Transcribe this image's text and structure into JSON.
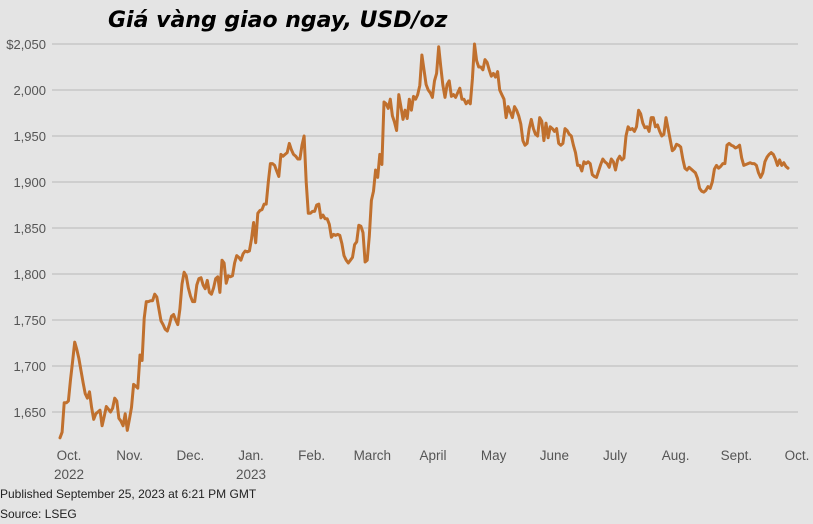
{
  "chart_data": {
    "type": "line",
    "title": "Giá vàng giao ngay, USD/oz",
    "xlabel": "",
    "ylabel": "",
    "ylim": [
      1620,
      2060
    ],
    "y_ticks": [
      "$2,050",
      "2,000",
      "1,950",
      "1,900",
      "1,850",
      "1,800",
      "1,750",
      "1,700",
      "1,650"
    ],
    "y_tick_values": [
      2050,
      2000,
      1950,
      1900,
      1850,
      1800,
      1750,
      1700,
      1650
    ],
    "x_ticks": [
      {
        "label": "Oct.",
        "sub": "2022"
      },
      {
        "label": "Nov.",
        "sub": ""
      },
      {
        "label": "Dec.",
        "sub": ""
      },
      {
        "label": "Jan.",
        "sub": "2023"
      },
      {
        "label": "Feb.",
        "sub": ""
      },
      {
        "label": "March",
        "sub": ""
      },
      {
        "label": "April",
        "sub": ""
      },
      {
        "label": "May",
        "sub": ""
      },
      {
        "label": "June",
        "sub": ""
      },
      {
        "label": "July",
        "sub": ""
      },
      {
        "label": "Aug.",
        "sub": ""
      },
      {
        "label": "Sept.",
        "sub": ""
      },
      {
        "label": "Oct.",
        "sub": ""
      }
    ],
    "grid": "horizontal",
    "line_color": "#c0702e",
    "series": [
      {
        "values": [
          1622,
          1628,
          1660,
          1660,
          1662,
          1685,
          1705,
          1726,
          1718,
          1708,
          1695,
          1682,
          1670,
          1665,
          1672,
          1655,
          1642,
          1648,
          1650,
          1652,
          1635,
          1645,
          1656,
          1653,
          1650,
          1654,
          1665,
          1662,
          1643,
          1640,
          1635,
          1648,
          1630,
          1642,
          1655,
          1680,
          1678,
          1676,
          1712,
          1706,
          1752,
          1770,
          1770,
          1771,
          1771,
          1778,
          1775,
          1762,
          1749,
          1745,
          1740,
          1738,
          1745,
          1754,
          1756,
          1750,
          1745,
          1762,
          1789,
          1802,
          1798,
          1785,
          1776,
          1770,
          1770,
          1788,
          1795,
          1796,
          1788,
          1784,
          1793,
          1780,
          1778,
          1785,
          1795,
          1797,
          1780,
          1815,
          1812,
          1790,
          1798,
          1797,
          1798,
          1812,
          1820,
          1818,
          1815,
          1822,
          1825,
          1824,
          1825,
          1838,
          1856,
          1834,
          1866,
          1869,
          1870,
          1876,
          1876,
          1900,
          1920,
          1920,
          1918,
          1912,
          1906,
          1930,
          1928,
          1930,
          1932,
          1942,
          1935,
          1930,
          1928,
          1925,
          1925,
          1940,
          1950,
          1900,
          1866,
          1866,
          1868,
          1868,
          1875,
          1876,
          1861,
          1864,
          1860,
          1860,
          1854,
          1840,
          1843,
          1842,
          1843,
          1842,
          1833,
          1820,
          1815,
          1812,
          1815,
          1818,
          1832,
          1835,
          1853,
          1852,
          1845,
          1813,
          1815,
          1841,
          1880,
          1890,
          1913,
          1905,
          1930,
          1919,
          1987,
          1985,
          1980,
          1990,
          1972,
          1965,
          1956,
          1995,
          1982,
          1968,
          1978,
          1969,
          1990,
          1978,
          1993,
          1990,
          1995,
          2005,
          2038,
          2022,
          2006,
          2000,
          1997,
          1992,
          2010,
          2018,
          2047,
          2025,
          2005,
          1992,
          2006,
          2010,
          1993,
          1995,
          1992,
          1997,
          2002,
          1990,
          1990,
          1985,
          1988,
          1985,
          2012,
          2050,
          2032,
          2025,
          2025,
          2022,
          2033,
          2030,
          2022,
          2015,
          2018,
          2014,
          2020,
          2000,
          1995,
          1990,
          1970,
          1982,
          1976,
          1970,
          1982,
          1978,
          1972,
          1963,
          1945,
          1940,
          1942,
          1958,
          1968,
          1958,
          1952,
          1950,
          1970,
          1966,
          1945,
          1964,
          1948,
          1960,
          1958,
          1955,
          1958,
          1942,
          1940,
          1942,
          1958,
          1956,
          1952,
          1950,
          1940,
          1932,
          1918,
          1918,
          1912,
          1922,
          1920,
          1922,
          1920,
          1908,
          1906,
          1905,
          1912,
          1919,
          1925,
          1922,
          1920,
          1916,
          1925,
          1922,
          1913,
          1924,
          1928,
          1924,
          1926,
          1950,
          1960,
          1957,
          1958,
          1955,
          1960,
          1978,
          1974,
          1964,
          1959,
          1960,
          1955,
          1970,
          1970,
          1960,
          1962,
          1955,
          1950,
          1952,
          1970,
          1958,
          1946,
          1934,
          1936,
          1941,
          1940,
          1938,
          1925,
          1915,
          1913,
          1916,
          1914,
          1912,
          1910,
          1904,
          1893,
          1890,
          1889,
          1891,
          1895,
          1893,
          1900,
          1914,
          1918,
          1915,
          1917,
          1920,
          1920,
          1940,
          1942,
          1940,
          1939,
          1937,
          1938,
          1940,
          1926,
          1918,
          1919,
          1920,
          1921,
          1920,
          1920,
          1918,
          1910,
          1905,
          1910,
          1922,
          1927,
          1930,
          1932,
          1930,
          1925,
          1918,
          1924,
          1918,
          1921,
          1917,
          1915
        ]
      }
    ]
  },
  "footer": {
    "published": "Published September 25, 2023 at 6:21 PM GMT",
    "source": "Source: LSEG"
  }
}
